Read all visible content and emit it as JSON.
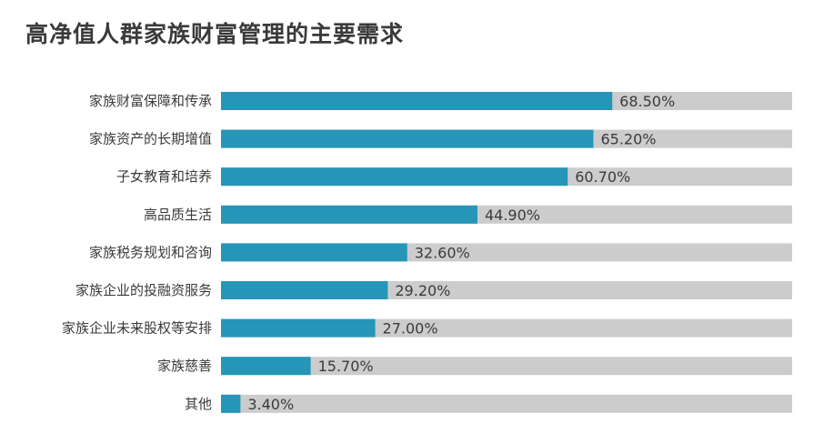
{
  "title": "高净值人群家族财富管理的主要需求",
  "chart_data": {
    "type": "bar",
    "orientation": "horizontal",
    "title": "高净值人群家族财富管理的主要需求",
    "categories": [
      "家族财富保障和传承",
      "家族资产的长期增值",
      "子女教育和培养",
      "高品质生活",
      "家族税务规划和咨询",
      "家族企业的投融资服务",
      "家族企业未来股权等安排",
      "家族慈善",
      "其他"
    ],
    "values": [
      68.5,
      65.2,
      60.7,
      44.9,
      32.6,
      29.2,
      27.0,
      15.7,
      3.4
    ],
    "value_labels": [
      "68.50%",
      "65.20%",
      "60.70%",
      "44.90%",
      "32.60%",
      "29.20%",
      "27.00%",
      "15.70%",
      "3.40%"
    ],
    "xlim": [
      0,
      100
    ],
    "grid": false,
    "colors": {
      "bar": "#2596b8",
      "track": "#cccccc",
      "text": "#3a3a3a"
    }
  }
}
